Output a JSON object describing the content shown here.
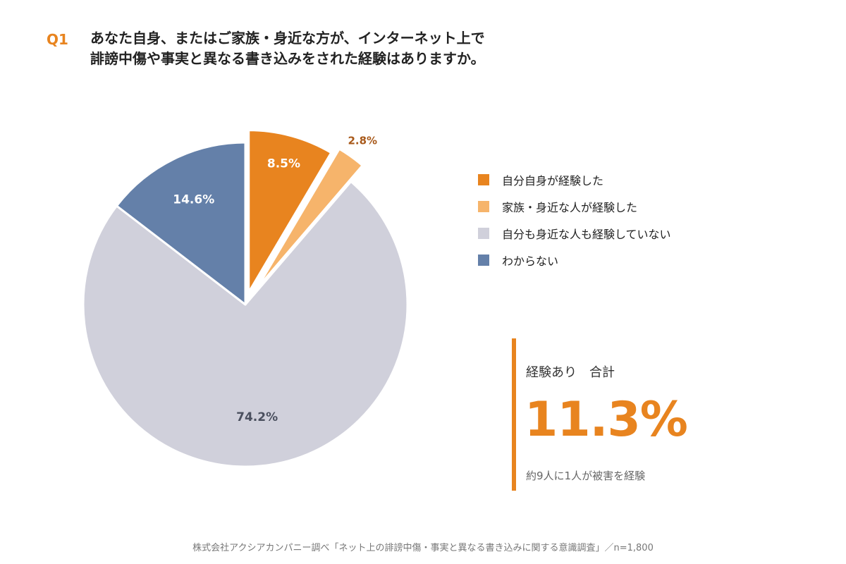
{
  "question": {
    "tag": "Q1",
    "line1": "あなた自身、またはご家族・身近な方が、インターネット上で",
    "line2": "誹謗中傷や事実と異なる書き込みをされた経験はありますか。"
  },
  "chart_data": {
    "type": "pie",
    "slices": [
      {
        "name": "自分自身が経験した",
        "value": 8.5,
        "label": "8.5%",
        "color": "#E8841F",
        "exploded": true,
        "label_color": "#ffffff"
      },
      {
        "name": "家族・身近な人が経験した",
        "value": 2.8,
        "label": "2.8%",
        "color": "#F6B46B",
        "exploded": true,
        "label_color": "#A8591A"
      },
      {
        "name": "自分も身近な人も経験していない",
        "value": 74.2,
        "label": "74.2%",
        "color": "#D0D0DB",
        "exploded": false,
        "label_color": "#4a4f5e"
      },
      {
        "name": "わからない",
        "value": 14.6,
        "label": "14.6%",
        "color": "#6480A9",
        "exploded": false,
        "label_color": "#ffffff"
      }
    ],
    "legend_position": "right"
  },
  "summary": {
    "label": "経験あり　合計",
    "value": "11.3%",
    "note": "約9人に1人が被害を経験"
  },
  "footer": {
    "source": "株式会社アクシアカンパニー調べ「ネット上の誹謗中傷・事実と異なる書き込みに関する意識調査」／n=1,800"
  }
}
